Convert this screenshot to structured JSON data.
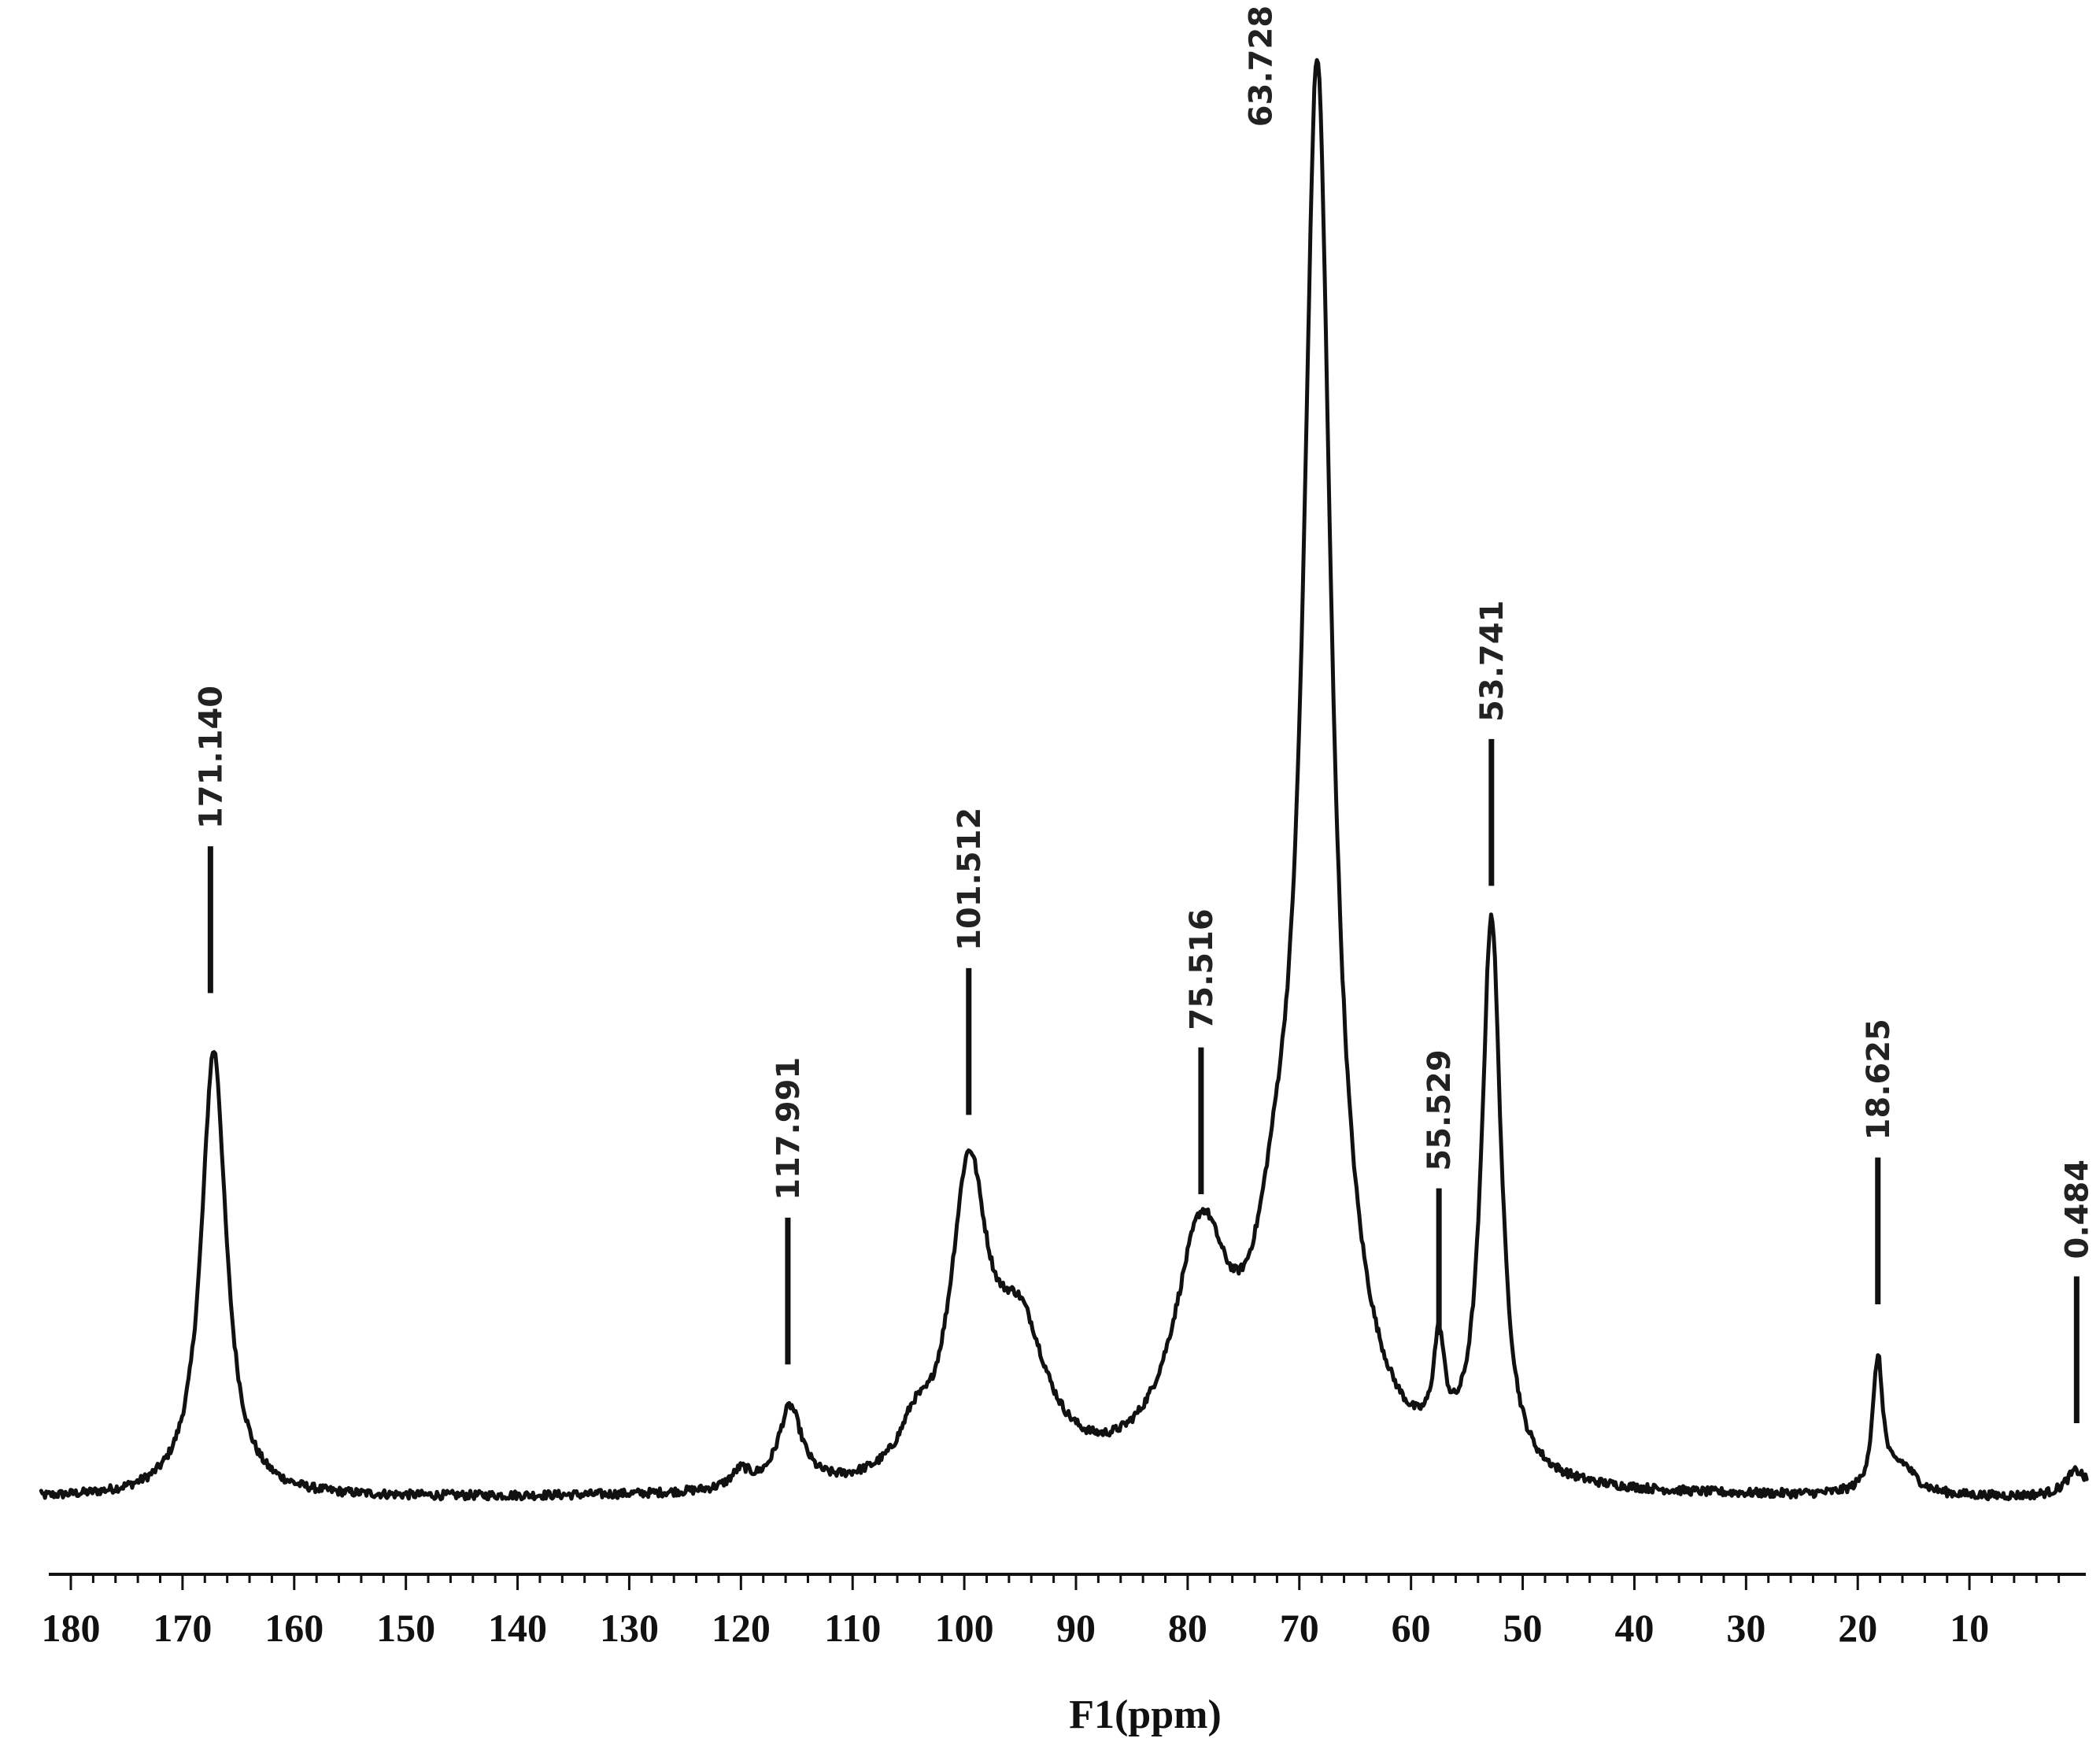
{
  "chart_data": {
    "type": "line",
    "title": "",
    "xlabel": "F1(ppm)",
    "ylabel": "",
    "xlim": [
      180,
      0
    ],
    "ylim": [
      0,
      1.0
    ],
    "x_reversed": true,
    "grid": false,
    "legend": "none",
    "x_ticks": [
      180,
      170,
      160,
      150,
      140,
      130,
      120,
      110,
      100,
      90,
      80,
      70,
      60,
      50,
      40,
      30,
      20,
      10
    ],
    "x_tick_labels": [
      "180",
      "170",
      "160",
      "150",
      "140",
      "130",
      "120",
      "110",
      "100",
      "90",
      "80",
      "70",
      "60",
      "50",
      "40",
      "30",
      "20",
      "10"
    ],
    "peak_labels": [
      {
        "text": "171.140",
        "x": 167.5,
        "bar_bottom": 0.345,
        "bar_top": 0.445
      },
      {
        "text": "117.991",
        "x": 115.8,
        "bar_bottom": 0.092,
        "bar_top": 0.192
      },
      {
        "text": "101.512",
        "x": 99.6,
        "bar_bottom": 0.262,
        "bar_top": 0.362
      },
      {
        "text": "75.516",
        "x": 78.8,
        "bar_bottom": 0.208,
        "bar_top": 0.308
      },
      {
        "text": "63.728",
        "x": 68.4,
        "bar_bottom": null,
        "bar_top": null
      },
      {
        "text": "55.529",
        "x": 57.5,
        "bar_bottom": 0.112,
        "bar_top": 0.212
      },
      {
        "text": "53.741",
        "x": 52.8,
        "bar_bottom": 0.418,
        "bar_top": 0.518
      },
      {
        "text": "18.625",
        "x": 18.2,
        "bar_bottom": 0.133,
        "bar_top": 0.233
      },
      {
        "text": "0.484",
        "x": 0.4,
        "bar_bottom": 0.052,
        "bar_top": 0.152
      }
    ],
    "spectrum": {
      "baseline_ppm_range": [
        180,
        0
      ],
      "components": [
        {
          "center": 167.2,
          "height": 0.305,
          "width": 1.35
        },
        {
          "center": 115.6,
          "height": 0.055,
          "width": 1.3
        },
        {
          "center": 99.6,
          "height": 0.2,
          "width": 2.0
        },
        {
          "center": 95.0,
          "height": 0.095,
          "width": 3.0
        },
        {
          "center": 104.5,
          "height": 0.025,
          "width": 1.5
        },
        {
          "center": 78.8,
          "height": 0.155,
          "width": 3.0
        },
        {
          "center": 72.0,
          "height": 0.1,
          "width": 2.5
        },
        {
          "center": 68.4,
          "height": 0.885,
          "width": 1.5
        },
        {
          "center": 66.5,
          "height": 0.06,
          "width": 4.0
        },
        {
          "center": 57.5,
          "height": 0.068,
          "width": 0.6
        },
        {
          "center": 52.8,
          "height": 0.38,
          "width": 1.05
        },
        {
          "center": 18.2,
          "height": 0.09,
          "width": 0.55
        },
        {
          "center": 16.0,
          "height": 0.018,
          "width": 1.5
        },
        {
          "center": 0.4,
          "height": 0.018,
          "width": 1.2
        },
        {
          "center": 120.0,
          "height": 0.012,
          "width": 1.0
        }
      ]
    }
  }
}
